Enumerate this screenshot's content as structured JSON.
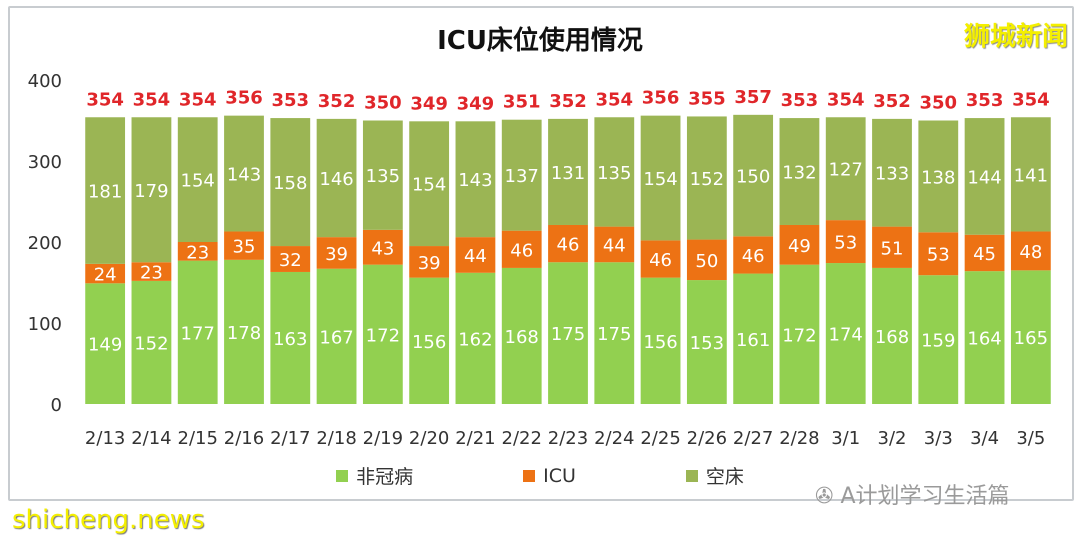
{
  "title": "ICU床位使用情况",
  "logo": "狮城新闻",
  "watermark": "shicheng.news",
  "wechat_source": "A计划学习生活篇",
  "colors": {
    "non_covid": "#92d050",
    "icu": "#ed7214",
    "empty": "#9bb554",
    "total_label": "#e0262a"
  },
  "chart_data": {
    "type": "bar",
    "stacked": true,
    "title": "ICU床位使用情况",
    "categories": [
      "2/13",
      "2/14",
      "2/15",
      "2/16",
      "2/17",
      "2/18",
      "2/19",
      "2/20",
      "2/21",
      "2/22",
      "2/23",
      "2/24",
      "2/25",
      "2/26",
      "2/27",
      "2/28",
      "3/1",
      "3/2",
      "3/3",
      "3/4",
      "3/5"
    ],
    "series": [
      {
        "name": "非冠病",
        "values": [
          149,
          152,
          177,
          178,
          163,
          167,
          172,
          156,
          162,
          168,
          175,
          175,
          156,
          153,
          161,
          172,
          174,
          168,
          159,
          164,
          165
        ]
      },
      {
        "name": "ICU",
        "values": [
          24,
          23,
          23,
          35,
          32,
          39,
          43,
          39,
          44,
          46,
          46,
          44,
          46,
          50,
          46,
          49,
          53,
          51,
          53,
          45,
          48
        ]
      },
      {
        "name": "空床",
        "values": [
          181,
          179,
          154,
          143,
          158,
          146,
          135,
          154,
          143,
          137,
          131,
          135,
          154,
          152,
          150,
          132,
          127,
          133,
          138,
          144,
          141
        ]
      }
    ],
    "totals": [
      354,
      354,
      354,
      356,
      353,
      352,
      350,
      349,
      349,
      351,
      352,
      354,
      356,
      355,
      357,
      353,
      354,
      352,
      350,
      353,
      354
    ],
    "ylim": [
      0,
      400
    ],
    "yticks": [
      0,
      100,
      200,
      300,
      400
    ],
    "grid": false,
    "legend": "bottom"
  }
}
